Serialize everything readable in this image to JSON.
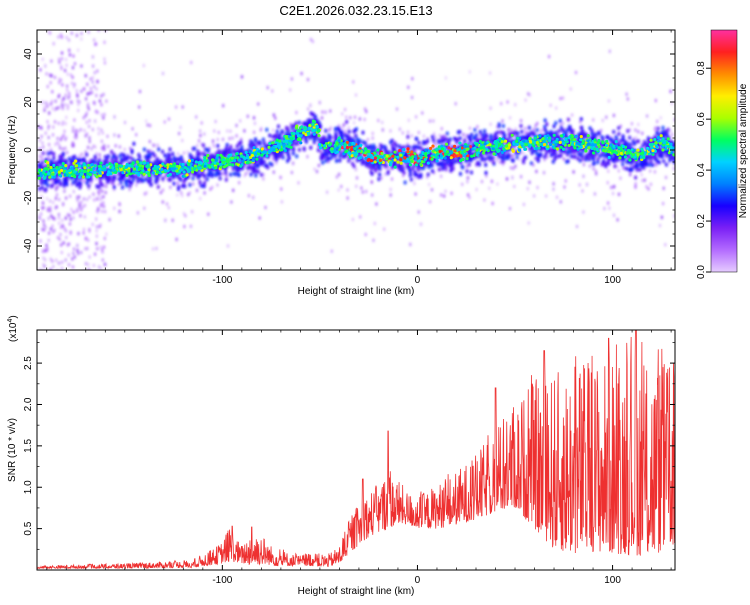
{
  "title": "C2E1.2026.032.23.15.E13",
  "chart_data": [
    {
      "type": "heatmap",
      "xlabel": "Height of straight line (km)",
      "ylabel": "Frequency (Hz)",
      "xlim": [
        -195,
        132
      ],
      "ylim": [
        -50,
        50
      ],
      "xticks": [
        -100,
        0,
        100
      ],
      "yticks": [
        -40,
        -20,
        0,
        20,
        40
      ],
      "ridge": {
        "x": [
          -195,
          -170,
          -150,
          -120,
          -100,
          -85,
          -70,
          -60,
          -52,
          -50,
          -40,
          -30,
          -20,
          -10,
          0,
          10,
          20,
          40,
          60,
          80,
          100,
          110,
          115,
          120,
          125,
          132
        ],
        "freq": [
          -8,
          -8,
          -7,
          -7,
          -4,
          -2,
          3,
          8,
          11,
          2,
          3,
          0,
          -3,
          -3,
          -2,
          -1,
          0,
          2,
          4,
          4,
          1,
          -1,
          -2,
          2,
          4,
          0
        ]
      },
      "colorbar": {
        "label": "Normalized spectral amplitude",
        "ticks": [
          "0.0",
          "0.2",
          "0.4",
          "0.6",
          "0.8"
        ],
        "range": [
          0,
          0.95
        ],
        "stops": [
          "#e6ccff",
          "#b36bff",
          "#7a20f5",
          "#1800ff",
          "#0080ff",
          "#00d2ff",
          "#00ff60",
          "#aaff00",
          "#ffee00",
          "#ff8c00",
          "#ff2020",
          "#ff30a0"
        ]
      }
    },
    {
      "type": "line",
      "xlabel": "Height of straight line (km)",
      "ylabel": "SNR (10 * v/v)",
      "multiplier": "(x10",
      "multiplier_exp": "4",
      "multiplier_close": ")",
      "xlim": [
        -195,
        132
      ],
      "ylim": [
        0,
        2.9
      ],
      "xticks": [
        -100,
        0,
        100
      ],
      "yticks": [
        "0.5",
        "1.0",
        "1.5",
        "2.0",
        "2.5"
      ],
      "color": "#ee3030",
      "envelope": {
        "x": [
          -195,
          -150,
          -115,
          -110,
          -105,
          -100,
          -97,
          -95,
          -90,
          -85,
          -80,
          -75,
          -70,
          -65,
          -60,
          -55,
          -50,
          -45,
          -40,
          -38,
          -35,
          -30,
          -25,
          -20,
          -15,
          -10,
          -5,
          0,
          5,
          10,
          15,
          20,
          30,
          40,
          50,
          60,
          70,
          80,
          90,
          100,
          110,
          120,
          132
        ],
        "low": [
          0.02,
          0.02,
          0.03,
          0.05,
          0.06,
          0.08,
          0.1,
          0.1,
          0.08,
          0.06,
          0.07,
          0.06,
          0.04,
          0.05,
          0.05,
          0.05,
          0.04,
          0.04,
          0.08,
          0.12,
          0.2,
          0.3,
          0.4,
          0.45,
          0.5,
          0.55,
          0.55,
          0.5,
          0.5,
          0.5,
          0.52,
          0.55,
          0.6,
          0.7,
          0.75,
          0.5,
          0.25,
          0.2,
          0.22,
          0.2,
          0.18,
          0.16,
          0.3
        ],
        "high": [
          0.05,
          0.08,
          0.12,
          0.2,
          0.25,
          0.35,
          0.5,
          0.45,
          0.3,
          0.5,
          0.45,
          0.3,
          0.25,
          0.2,
          0.18,
          0.22,
          0.2,
          0.2,
          0.3,
          0.45,
          0.6,
          0.8,
          0.95,
          1.05,
          1.2,
          1.1,
          0.95,
          0.9,
          0.95,
          1.05,
          1.1,
          1.2,
          1.4,
          1.7,
          2.0,
          2.3,
          2.4,
          2.5,
          2.6,
          2.6,
          2.7,
          2.6,
          2.5
        ]
      },
      "spikes": [
        {
          "x": -95,
          "y": 0.53
        },
        {
          "x": -85,
          "y": 0.52
        },
        {
          "x": -28,
          "y": 1.1
        },
        {
          "x": -15,
          "y": 1.68
        },
        {
          "x": 40,
          "y": 2.2
        },
        {
          "x": 65,
          "y": 2.65
        },
        {
          "x": 98,
          "y": 2.8
        },
        {
          "x": 112,
          "y": 3.0
        }
      ]
    }
  ]
}
